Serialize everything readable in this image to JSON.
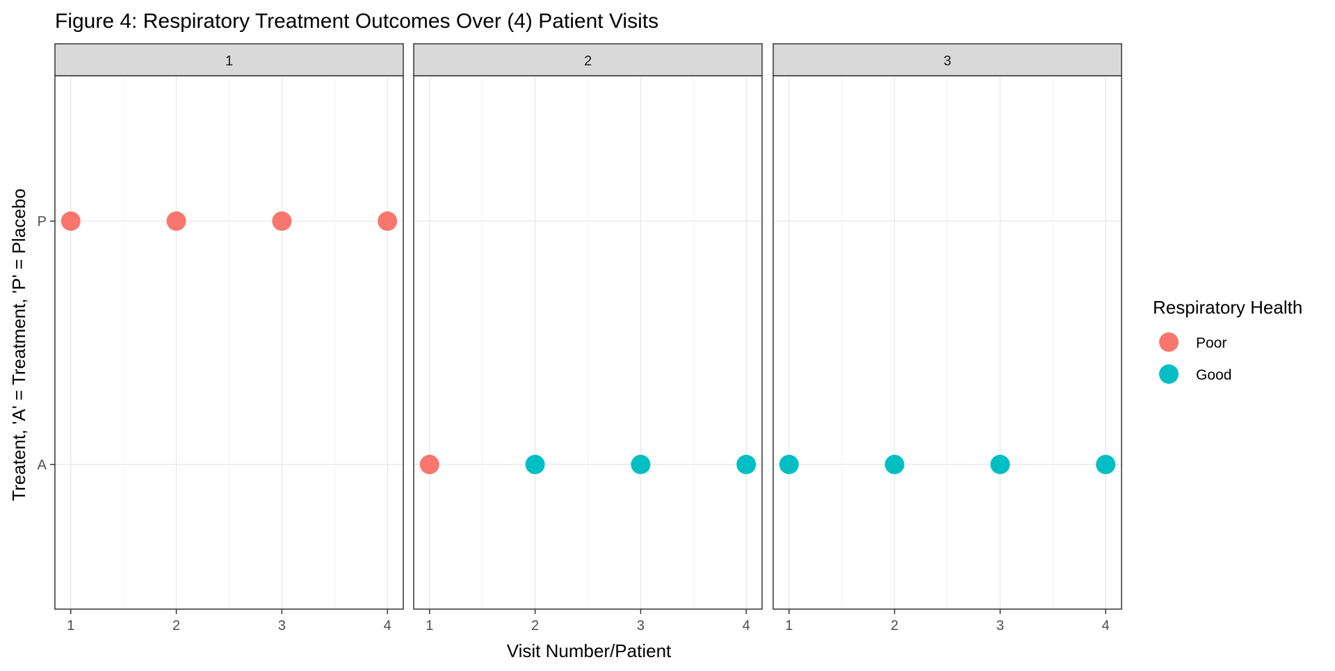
{
  "chart_data": {
    "type": "scatter",
    "title": "Figure 4: Respiratory Treatment Outcomes Over (4) Patient Visits",
    "xlabel": "Visit Number/Patient",
    "ylabel": "Treatent, 'A' = Treatment, 'P' = Placebo",
    "x_ticks": [
      "1",
      "2",
      "3",
      "4"
    ],
    "xlim": [
      0.85,
      4.15
    ],
    "y_categories": [
      "A",
      "P"
    ],
    "grid": true,
    "legend": {
      "title": "Respiratory Health",
      "placement": "right",
      "entries": [
        {
          "name": "Poor",
          "color": "#F8766D"
        },
        {
          "name": "Good",
          "color": "#00BFC4"
        }
      ]
    },
    "panels": [
      {
        "label": "1",
        "points": [
          {
            "x": 1,
            "y": "P",
            "health": "Poor"
          },
          {
            "x": 2,
            "y": "P",
            "health": "Poor"
          },
          {
            "x": 3,
            "y": "P",
            "health": "Poor"
          },
          {
            "x": 4,
            "y": "P",
            "health": "Poor"
          }
        ]
      },
      {
        "label": "2",
        "points": [
          {
            "x": 1,
            "y": "A",
            "health": "Poor"
          },
          {
            "x": 2,
            "y": "A",
            "health": "Good"
          },
          {
            "x": 3,
            "y": "A",
            "health": "Good"
          },
          {
            "x": 4,
            "y": "A",
            "health": "Good"
          }
        ]
      },
      {
        "label": "3",
        "points": [
          {
            "x": 1,
            "y": "A",
            "health": "Good"
          },
          {
            "x": 2,
            "y": "A",
            "health": "Good"
          },
          {
            "x": 3,
            "y": "A",
            "health": "Good"
          },
          {
            "x": 4,
            "y": "A",
            "health": "Good"
          }
        ]
      }
    ]
  }
}
